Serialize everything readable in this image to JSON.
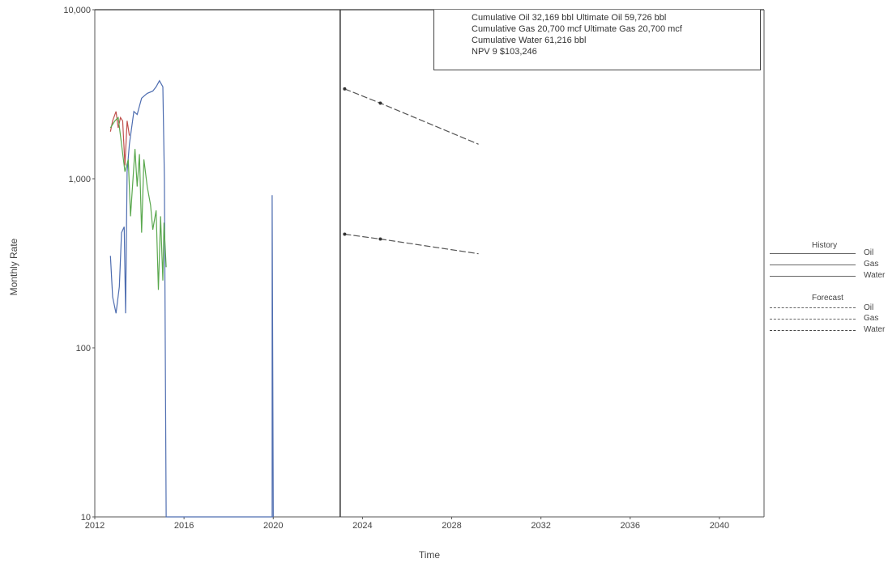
{
  "chart_data": {
    "type": "line",
    "xlabel": "Time",
    "ylabel": "Monthly Rate",
    "yscale": "log",
    "xlim": [
      2012,
      2042
    ],
    "ylim": [
      10,
      10000
    ],
    "x_ticks": [
      "2012",
      "2016",
      "2020",
      "2024",
      "2028",
      "2032",
      "2036",
      "2040"
    ],
    "y_ticks": [
      "10",
      "100",
      "1,000",
      "10,000"
    ],
    "divider_year": 2023,
    "series": [
      {
        "name": "Oil",
        "kind": "history",
        "color": "#4e6db0",
        "points": [
          [
            2012.7,
            350
          ],
          [
            2012.8,
            200
          ],
          [
            2012.95,
            160
          ],
          [
            2013.1,
            230
          ],
          [
            2013.2,
            480
          ],
          [
            2013.32,
            520
          ],
          [
            2013.38,
            160
          ],
          [
            2013.45,
            1100
          ],
          [
            2013.55,
            1600
          ],
          [
            2013.75,
            2500
          ],
          [
            2013.9,
            2400
          ],
          [
            2014.1,
            3000
          ],
          [
            2014.35,
            3200
          ],
          [
            2014.6,
            3300
          ],
          [
            2014.75,
            3500
          ],
          [
            2014.9,
            3800
          ],
          [
            2015.05,
            3500
          ],
          [
            2015.12,
            1000
          ],
          [
            2015.2,
            10
          ],
          [
            2019.95,
            10
          ],
          [
            2019.95,
            800
          ],
          [
            2020.0,
            10
          ]
        ]
      },
      {
        "name": "Gas",
        "kind": "history",
        "color": "#c0504d",
        "points": [
          [
            2012.7,
            1900
          ],
          [
            2012.8,
            2200
          ],
          [
            2012.95,
            2500
          ],
          [
            2013.05,
            2000
          ],
          [
            2013.15,
            2300
          ],
          [
            2013.25,
            2200
          ],
          [
            2013.35,
            1200
          ],
          [
            2013.45,
            2200
          ],
          [
            2013.55,
            1800
          ]
        ]
      },
      {
        "name": "Water",
        "kind": "history",
        "color": "#5aa84e",
        "points": [
          [
            2012.7,
            2000
          ],
          [
            2012.9,
            2200
          ],
          [
            2013.05,
            2300
          ],
          [
            2013.2,
            1600
          ],
          [
            2013.35,
            1100
          ],
          [
            2013.5,
            1300
          ],
          [
            2013.6,
            600
          ],
          [
            2013.8,
            1500
          ],
          [
            2013.9,
            900
          ],
          [
            2014.0,
            1400
          ],
          [
            2014.1,
            480
          ],
          [
            2014.2,
            1300
          ],
          [
            2014.35,
            900
          ],
          [
            2014.5,
            700
          ],
          [
            2014.6,
            500
          ],
          [
            2014.75,
            650
          ],
          [
            2014.85,
            220
          ],
          [
            2014.95,
            600
          ],
          [
            2015.05,
            250
          ],
          [
            2015.1,
            550
          ],
          [
            2015.2,
            300
          ]
        ]
      },
      {
        "name": "Oil",
        "kind": "forecast",
        "color": "#555555",
        "dash": "8,3",
        "points": [
          [
            2023.2,
            3400
          ],
          [
            2024.8,
            2800
          ],
          [
            2029.2,
            1600
          ]
        ]
      },
      {
        "name": "Gas",
        "kind": "forecast",
        "color": "#555555",
        "dash": "8,3",
        "points": [
          [
            2023.2,
            470
          ],
          [
            2024.8,
            440
          ],
          [
            2029.2,
            360
          ]
        ]
      }
    ],
    "info_text": [
      "Cumulative Oil 32,169 bbl Ultimate Oil 59,726 bbl",
      "Cumulative Gas 20,700 mcf Ultimate Gas 20,700 mcf",
      "Cumulative Water 61,216 bbl",
      "NPV 9 $103,246"
    ],
    "legend": {
      "history_title": "History",
      "forecast_title": "Forecast",
      "history_items": [
        "Oil",
        "Gas",
        "Water"
      ],
      "forecast_items": [
        "Oil",
        "Gas",
        "Water"
      ]
    },
    "grid": false,
    "legend_placement": "right"
  }
}
